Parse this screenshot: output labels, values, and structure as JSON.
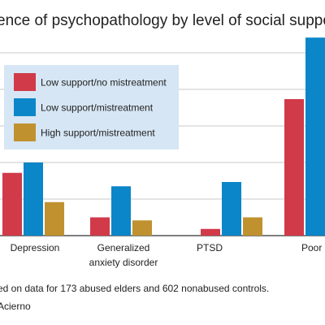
{
  "colors": {
    "low_no_mistreatment": "#d13a48",
    "low_mistreatment": "#0a86c9",
    "high_mistreatment": "#c0922f",
    "legend_bg": "#d6e6f4",
    "grid": "#c9c9c9",
    "axis": "#555555"
  },
  "chart_data": {
    "type": "bar",
    "title": "ence of psychopathology by level of social support",
    "categories": [
      "Depression",
      "Generalized anxiety disorder",
      "PTSD",
      "Poor he"
    ],
    "category_labels": [
      [
        "Depression"
      ],
      [
        "Generalized",
        "anxiety disorder"
      ],
      [
        "PTSD"
      ],
      [
        "Poor he"
      ]
    ],
    "series": [
      {
        "name": "Low support/no mistreatment",
        "values": [
          10.3,
          3.0,
          1.1,
          22.4
        ]
      },
      {
        "name": "Low support/mistreatment",
        "values": [
          12.0,
          8.1,
          8.8,
          32.5
        ]
      },
      {
        "name": "High support/mistreatment",
        "values": [
          5.5,
          2.5,
          3.0,
          null
        ]
      }
    ],
    "ylim": [
      0,
      32
    ],
    "grid": true,
    "legend_position": "top-left"
  },
  "footnote": {
    "note": "ed on data for 173 abused elders and 602 nonabused controls.",
    "credit": "Acierno"
  }
}
